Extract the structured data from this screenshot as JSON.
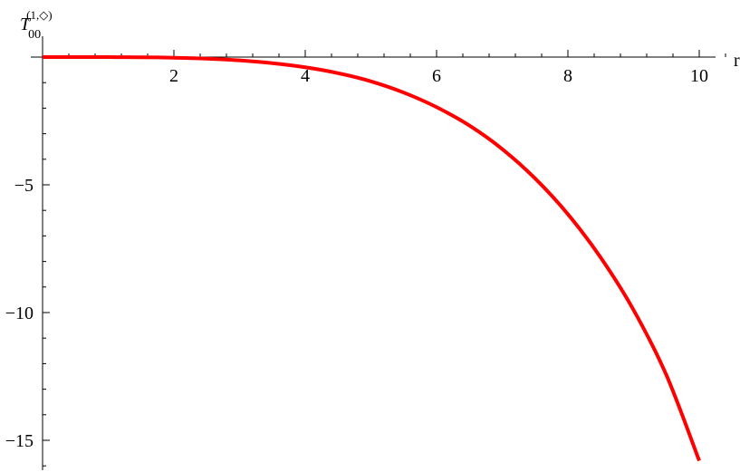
{
  "chart_data": {
    "type": "line",
    "title": "",
    "xlabel": "r",
    "ylabel": {
      "base": "T",
      "subscript": "00",
      "superscript": "(1,◇)"
    },
    "xlim": [
      0,
      10.5
    ],
    "ylim": [
      -16.2,
      0.9
    ],
    "x_major_ticks": [
      2,
      4,
      6,
      8,
      10
    ],
    "y_major_ticks": [
      -5,
      -10,
      -15
    ],
    "x_tick_labels": [
      "2",
      "4",
      "6",
      "8",
      "10"
    ],
    "y_tick_labels": [
      "−5",
      "−10",
      "−15"
    ],
    "grid": false,
    "series": [
      {
        "color": "#ff0000",
        "x": [
          0,
          0.5,
          1,
          1.5,
          2,
          2.5,
          3,
          3.5,
          4,
          4.5,
          5,
          5.5,
          6,
          6.5,
          7,
          7.5,
          8,
          8.5,
          9,
          9.5,
          10
        ],
        "y": [
          0,
          -0.0002,
          -0.0016,
          -0.008,
          -0.025,
          -0.06,
          -0.13,
          -0.24,
          -0.4,
          -0.63,
          -0.95,
          -1.39,
          -1.96,
          -2.68,
          -3.6,
          -4.75,
          -6.15,
          -7.85,
          -9.9,
          -12.45,
          -15.8
        ]
      }
    ]
  }
}
